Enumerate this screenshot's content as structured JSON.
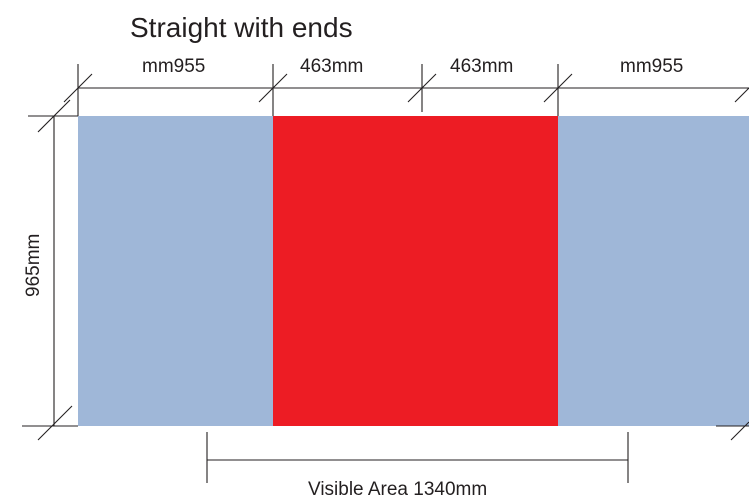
{
  "diagram": {
    "title": "Straight with ends",
    "panels": [
      {
        "width_label": "mm955",
        "color": "#9fb7d8",
        "role": "end"
      },
      {
        "width_label": "463mm",
        "color": "#ed1c24",
        "role": "center-left"
      },
      {
        "width_label": "463mm",
        "color": "#ed1c24",
        "role": "center-right"
      },
      {
        "width_label": "mm955",
        "color": "#9fb7d8",
        "role": "end"
      }
    ],
    "height_label": "965mm",
    "visible_area_label": "Visible Area 1340mm",
    "colors": {
      "end_panel": "#9fb7d8",
      "center_panel": "#ed1c24",
      "dimension_line": "#231f20"
    }
  }
}
